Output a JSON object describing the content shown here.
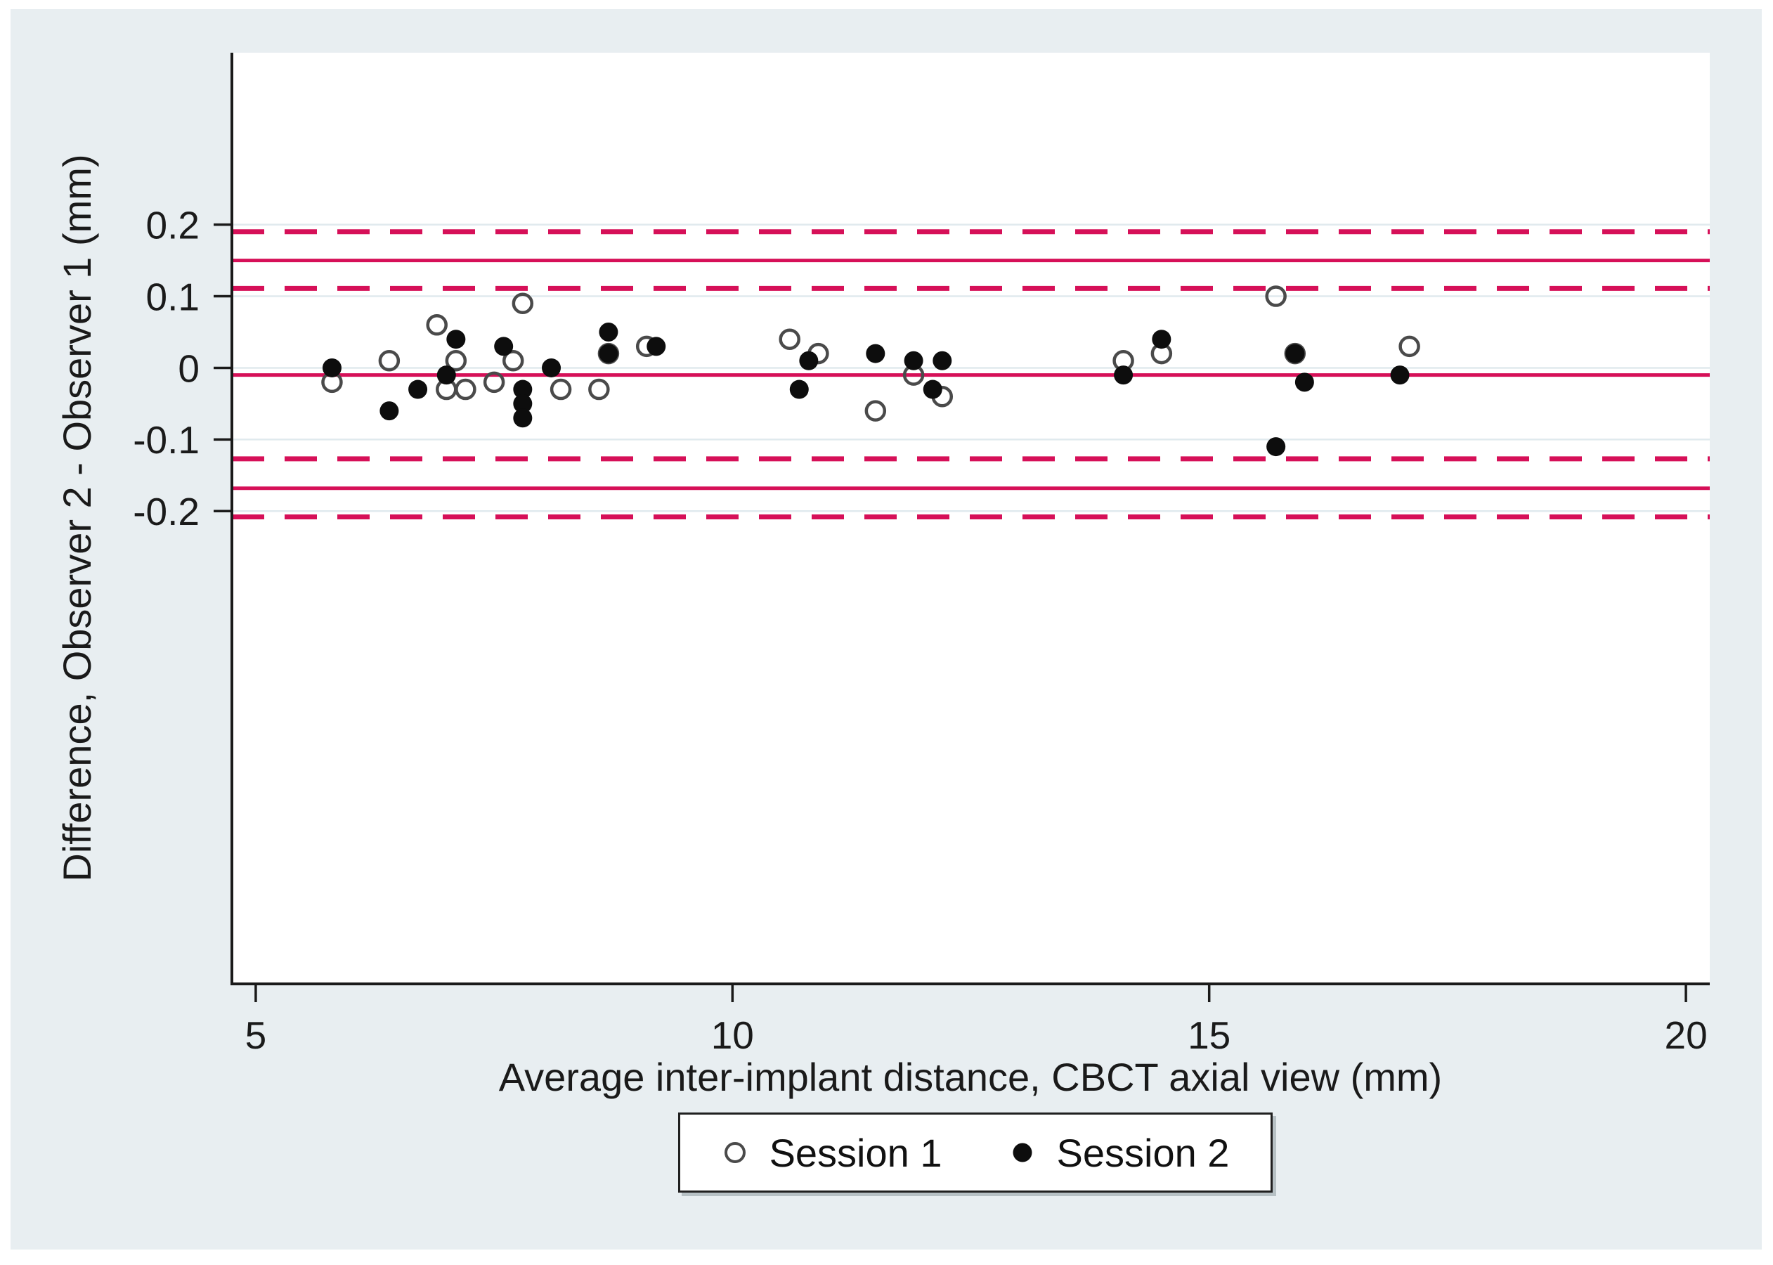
{
  "figure": {
    "kind": "Bland-Altman scatter plot"
  },
  "legend": {
    "position": "bottom-center",
    "items": [
      {
        "label": "Session 1",
        "marker": "open-circle"
      },
      {
        "label": "Session 2",
        "marker": "filled-circle"
      }
    ]
  },
  "colors": {
    "page_bg": "#ffffff",
    "figure_bg": "#e8eef1",
    "plot_bg": "#ffffff",
    "grid": "#e0eaee",
    "axis": "#1a1a1a",
    "ref_line": "#d61058",
    "open_marker": "#4a4a4a",
    "filled_marker": "#0d0d0d",
    "text": "#1a1a1a"
  },
  "chart_data": {
    "type": "scatter",
    "title": "",
    "xlabel": "Average inter-implant distance, CBCT axial view (mm)",
    "ylabel": "Difference, Observer 2 - Observer 1 (mm)",
    "xlim": [
      4.75,
      20.25
    ],
    "ylim": [
      -0.86,
      0.44
    ],
    "x_ticks": [
      5,
      10,
      15,
      20
    ],
    "x_tick_labels": [
      "5",
      "10",
      "15",
      "20"
    ],
    "y_ticks": [
      0.2,
      0.1,
      0,
      -0.1,
      -0.2
    ],
    "y_tick_labels": [
      "0.2",
      "0.1",
      "0",
      "-0.1",
      "-0.2"
    ],
    "grid": "horizontal gridlines at y ticks only",
    "legend_position": "below x-axis, centered",
    "reference_lines": [
      {
        "value": 0.19,
        "style": "dashed",
        "meaning": "upper limit of agreement, upper 95% CI"
      },
      {
        "value": 0.15,
        "style": "solid",
        "meaning": "upper limit of agreement"
      },
      {
        "value": 0.111,
        "style": "dashed",
        "meaning": "upper limit of agreement, lower 95% CI"
      },
      {
        "value": -0.01,
        "style": "solid",
        "meaning": "mean difference"
      },
      {
        "value": -0.127,
        "style": "dashed",
        "meaning": "lower limit of agreement, upper 95% CI"
      },
      {
        "value": -0.168,
        "style": "solid",
        "meaning": "lower limit of agreement"
      },
      {
        "value": -0.208,
        "style": "dashed",
        "meaning": "lower limit of agreement, lower 95% CI"
      }
    ],
    "series": [
      {
        "name": "Session 1",
        "marker": "open-circle",
        "points": [
          {
            "x": 5.8,
            "y": -0.02
          },
          {
            "x": 6.4,
            "y": 0.01
          },
          {
            "x": 6.9,
            "y": 0.06
          },
          {
            "x": 7.0,
            "y": -0.03
          },
          {
            "x": 7.1,
            "y": 0.01
          },
          {
            "x": 7.2,
            "y": -0.03
          },
          {
            "x": 7.5,
            "y": -0.02
          },
          {
            "x": 7.7,
            "y": 0.01
          },
          {
            "x": 7.8,
            "y": 0.09
          },
          {
            "x": 8.2,
            "y": -0.03
          },
          {
            "x": 8.6,
            "y": -0.03
          },
          {
            "x": 8.7,
            "y": 0.02
          },
          {
            "x": 9.1,
            "y": 0.03
          },
          {
            "x": 10.6,
            "y": 0.04
          },
          {
            "x": 10.9,
            "y": 0.02
          },
          {
            "x": 11.5,
            "y": -0.06
          },
          {
            "x": 11.9,
            "y": -0.01
          },
          {
            "x": 12.2,
            "y": -0.04
          },
          {
            "x": 14.1,
            "y": 0.01
          },
          {
            "x": 14.5,
            "y": 0.02
          },
          {
            "x": 15.7,
            "y": 0.1
          },
          {
            "x": 15.9,
            "y": 0.02
          },
          {
            "x": 17.1,
            "y": 0.03
          }
        ]
      },
      {
        "name": "Session 2",
        "marker": "filled-circle",
        "points": [
          {
            "x": 5.8,
            "y": 0.0
          },
          {
            "x": 6.4,
            "y": -0.06
          },
          {
            "x": 6.7,
            "y": -0.03
          },
          {
            "x": 7.0,
            "y": -0.01
          },
          {
            "x": 7.1,
            "y": 0.04
          },
          {
            "x": 7.6,
            "y": 0.03
          },
          {
            "x": 7.8,
            "y": -0.03
          },
          {
            "x": 7.8,
            "y": -0.05
          },
          {
            "x": 7.8,
            "y": -0.07
          },
          {
            "x": 8.1,
            "y": 0.0
          },
          {
            "x": 8.7,
            "y": 0.05
          },
          {
            "x": 8.7,
            "y": 0.02
          },
          {
            "x": 9.2,
            "y": 0.03
          },
          {
            "x": 10.7,
            "y": -0.03
          },
          {
            "x": 10.8,
            "y": 0.01
          },
          {
            "x": 11.5,
            "y": 0.02
          },
          {
            "x": 11.9,
            "y": 0.01
          },
          {
            "x": 12.1,
            "y": -0.03
          },
          {
            "x": 12.2,
            "y": 0.01
          },
          {
            "x": 14.1,
            "y": -0.01
          },
          {
            "x": 14.5,
            "y": 0.04
          },
          {
            "x": 15.7,
            "y": -0.11
          },
          {
            "x": 15.9,
            "y": 0.02
          },
          {
            "x": 16.0,
            "y": -0.02
          },
          {
            "x": 17.0,
            "y": -0.01
          }
        ]
      }
    ]
  }
}
